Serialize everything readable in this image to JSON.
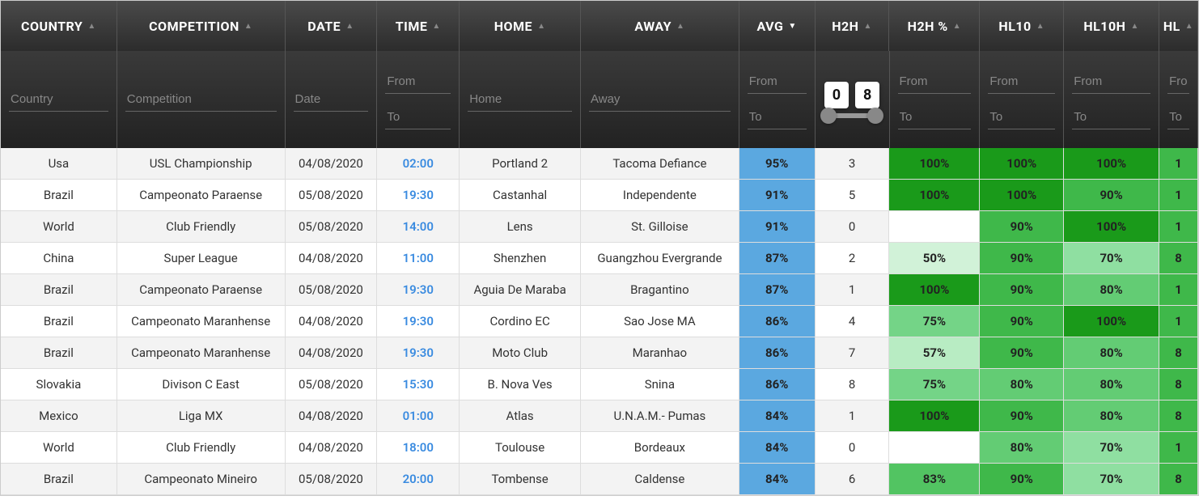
{
  "columns": [
    {
      "key": "country",
      "label": "COUNTRY",
      "width": "c-country",
      "sort": "asc",
      "filter_type": "text",
      "placeholder": "Country"
    },
    {
      "key": "competition",
      "label": "COMPETITION",
      "width": "c-competition",
      "sort": "asc",
      "filter_type": "text",
      "placeholder": "Competition"
    },
    {
      "key": "date",
      "label": "DATE",
      "width": "c-date",
      "sort": "asc",
      "filter_type": "text",
      "placeholder": "Date"
    },
    {
      "key": "time",
      "label": "TIME",
      "width": "c-time",
      "sort": "asc",
      "filter_type": "range",
      "from": "From",
      "to": "To"
    },
    {
      "key": "home",
      "label": "HOME",
      "width": "c-home",
      "sort": "asc",
      "filter_type": "text",
      "placeholder": "Home"
    },
    {
      "key": "away",
      "label": "AWAY",
      "width": "c-away",
      "sort": "asc",
      "filter_type": "text",
      "placeholder": "Away"
    },
    {
      "key": "avg",
      "label": "AVG",
      "width": "c-avg",
      "sort": "desc",
      "sorted": true,
      "filter_type": "range",
      "from": "From",
      "to": "To"
    },
    {
      "key": "h2h",
      "label": "H2H",
      "width": "c-h2h",
      "sort": "asc",
      "filter_type": "slider",
      "min": "0",
      "max": "8"
    },
    {
      "key": "h2hp",
      "label": "H2H %",
      "width": "c-h2hp",
      "sort": "asc",
      "filter_type": "range",
      "from": "From",
      "to": "To"
    },
    {
      "key": "hl10",
      "label": "HL10",
      "width": "c-hl10",
      "sort": "asc",
      "filter_type": "range",
      "from": "From",
      "to": "To"
    },
    {
      "key": "hl10h",
      "label": "HL10H",
      "width": "c-hl10h",
      "sort": "asc",
      "filter_type": "range",
      "from": "From",
      "to": "To"
    },
    {
      "key": "hl",
      "label": "HL",
      "width": "c-hl",
      "sort": "asc",
      "filter_type": "range",
      "from": "Fro",
      "to": "To"
    }
  ],
  "colors": {
    "avg_bg": "#5ba8e0",
    "pct_scale": {
      "100": "#1a9a1a",
      "90": "#3fb84a",
      "83": "#52c462",
      "80": "#63cc74",
      "75": "#74d487",
      "70": "#8fdfa1",
      "57": "#b8ecc3",
      "50": "#d1f2d8",
      "": "#ffffff"
    }
  },
  "rows": [
    {
      "country": "Usa",
      "competition": "USL Championship",
      "date": "04/08/2020",
      "time": "02:00",
      "home": "Portland 2",
      "away": "Tacoma Defiance",
      "avg": "95%",
      "h2h": "3",
      "h2hp": "100%",
      "hl10": "100%",
      "hl10h": "100%",
      "hl": "1"
    },
    {
      "country": "Brazil",
      "competition": "Campeonato Paraense",
      "date": "05/08/2020",
      "time": "19:30",
      "home": "Castanhal",
      "away": "Independente",
      "avg": "91%",
      "h2h": "5",
      "h2hp": "100%",
      "hl10": "100%",
      "hl10h": "90%",
      "hl": "1"
    },
    {
      "country": "World",
      "competition": "Club Friendly",
      "date": "05/08/2020",
      "time": "14:00",
      "home": "Lens",
      "away": "St. Gilloise",
      "avg": "91%",
      "h2h": "0",
      "h2hp": "",
      "hl10": "90%",
      "hl10h": "100%",
      "hl": "1"
    },
    {
      "country": "China",
      "competition": "Super League",
      "date": "04/08/2020",
      "time": "11:00",
      "home": "Shenzhen",
      "away": "Guangzhou Evergrande",
      "avg": "87%",
      "h2h": "2",
      "h2hp": "50%",
      "hl10": "90%",
      "hl10h": "70%",
      "hl": "8"
    },
    {
      "country": "Brazil",
      "competition": "Campeonato Paraense",
      "date": "05/08/2020",
      "time": "19:30",
      "home": "Aguia De Maraba",
      "away": "Bragantino",
      "avg": "87%",
      "h2h": "1",
      "h2hp": "100%",
      "hl10": "90%",
      "hl10h": "80%",
      "hl": "1"
    },
    {
      "country": "Brazil",
      "competition": "Campeonato Maranhense",
      "date": "04/08/2020",
      "time": "19:30",
      "home": "Cordino EC",
      "away": "Sao Jose MA",
      "avg": "86%",
      "h2h": "4",
      "h2hp": "75%",
      "hl10": "90%",
      "hl10h": "100%",
      "hl": "1"
    },
    {
      "country": "Brazil",
      "competition": "Campeonato Maranhense",
      "date": "04/08/2020",
      "time": "19:30",
      "home": "Moto Club",
      "away": "Maranhao",
      "avg": "86%",
      "h2h": "7",
      "h2hp": "57%",
      "hl10": "90%",
      "hl10h": "80%",
      "hl": "8"
    },
    {
      "country": "Slovakia",
      "competition": "Divison C East",
      "date": "05/08/2020",
      "time": "15:30",
      "home": "B. Nova Ves",
      "away": "Snina",
      "avg": "86%",
      "h2h": "8",
      "h2hp": "75%",
      "hl10": "80%",
      "hl10h": "80%",
      "hl": "8"
    },
    {
      "country": "Mexico",
      "competition": "Liga MX",
      "date": "04/08/2020",
      "time": "01:00",
      "home": "Atlas",
      "away": "U.N.A.M.- Pumas",
      "avg": "84%",
      "h2h": "1",
      "h2hp": "100%",
      "hl10": "90%",
      "hl10h": "80%",
      "hl": "8"
    },
    {
      "country": "World",
      "competition": "Club Friendly",
      "date": "04/08/2020",
      "time": "18:00",
      "home": "Toulouse",
      "away": "Bordeaux",
      "avg": "84%",
      "h2h": "0",
      "h2hp": "",
      "hl10": "80%",
      "hl10h": "70%",
      "hl": "1"
    },
    {
      "country": "Brazil",
      "competition": "Campeonato Mineiro",
      "date": "05/08/2020",
      "time": "20:00",
      "home": "Tombense",
      "away": "Caldense",
      "avg": "84%",
      "h2h": "6",
      "h2hp": "83%",
      "hl10": "90%",
      "hl10h": "70%",
      "hl": "8"
    }
  ]
}
